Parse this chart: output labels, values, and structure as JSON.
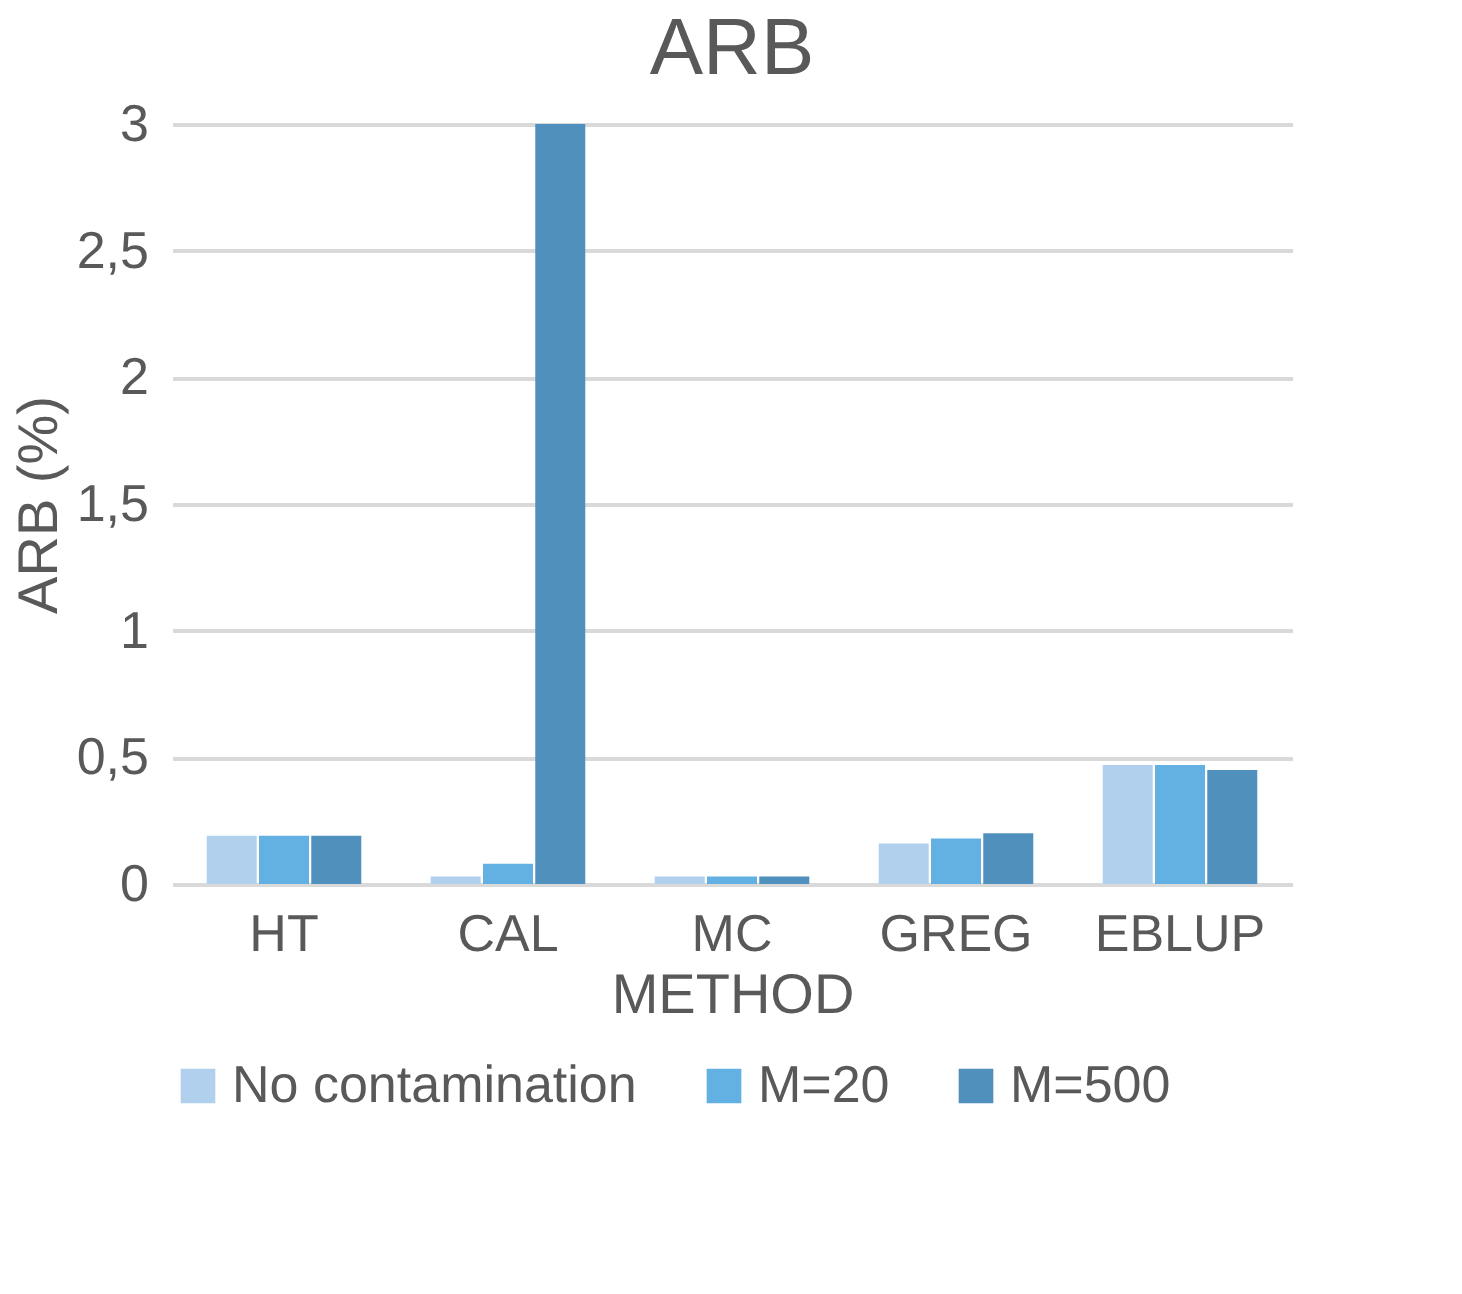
{
  "chart_data": {
    "type": "bar",
    "title": "ARB",
    "xlabel": "METHOD",
    "ylabel": "ARB (%)",
    "categories": [
      "HT",
      "CAL",
      "MC",
      "GREG",
      "EBLUP"
    ],
    "series": [
      {
        "name": "No contamination",
        "color": "#b0d0ee",
        "values": [
          0.19,
          0.03,
          0.03,
          0.16,
          0.47
        ]
      },
      {
        "name": "M=20",
        "color": "#63b0e3",
        "values": [
          0.19,
          0.08,
          0.03,
          0.18,
          0.47
        ]
      },
      {
        "name": "M=500",
        "color": "#4f90bd",
        "values": [
          0.19,
          3,
          0.03,
          0.2,
          0.45
        ]
      }
    ],
    "ylim": [
      0,
      3
    ],
    "yticks": [
      0,
      {
        "value": 0.5,
        "label": "0,5"
      },
      1,
      {
        "value": 1.5,
        "label": "1,5"
      },
      2,
      {
        "value": 2.5,
        "label": "2,5"
      },
      3
    ],
    "grid": "y",
    "legend": "bottom"
  }
}
